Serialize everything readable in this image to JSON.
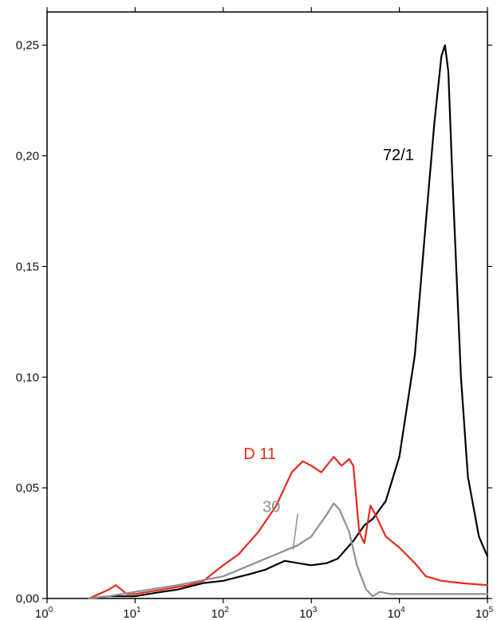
{
  "chart_data": {
    "type": "line",
    "title": "",
    "xlabel": "",
    "ylabel": "",
    "x_scale": "log",
    "xlim": [
      1,
      100000
    ],
    "ylim": [
      0,
      0.265
    ],
    "grid": false,
    "x_ticks": [
      {
        "base": "10",
        "exp": "0",
        "value": 1
      },
      {
        "base": "10",
        "exp": "1",
        "value": 10
      },
      {
        "base": "10",
        "exp": "2",
        "value": 100
      },
      {
        "base": "10",
        "exp": "3",
        "value": 1000
      },
      {
        "base": "10",
        "exp": "4",
        "value": 10000
      },
      {
        "base": "10",
        "exp": "5",
        "value": 100000
      }
    ],
    "y_ticks": [
      {
        "label": "0,00",
        "value": 0
      },
      {
        "label": "0,05",
        "value": 0.05
      },
      {
        "label": "0,10",
        "value": 0.1
      },
      {
        "label": "0,15",
        "value": 0.15
      },
      {
        "label": "0,20",
        "value": 0.2
      },
      {
        "label": "0,25",
        "value": 0.25
      }
    ],
    "series": [
      {
        "name": "72/1",
        "color": "#000000",
        "label_pos": [
          6500,
          0.198
        ],
        "points": [
          [
            3,
            0.0
          ],
          [
            5,
            0.001
          ],
          [
            10,
            0.001
          ],
          [
            20,
            0.003
          ],
          [
            30,
            0.004
          ],
          [
            60,
            0.007
          ],
          [
            100,
            0.008
          ],
          [
            200,
            0.011
          ],
          [
            300,
            0.013
          ],
          [
            500,
            0.017
          ],
          [
            700,
            0.016
          ],
          [
            1000,
            0.015
          ],
          [
            1500,
            0.016
          ],
          [
            2000,
            0.018
          ],
          [
            3000,
            0.026
          ],
          [
            4000,
            0.033
          ],
          [
            5000,
            0.036
          ],
          [
            7000,
            0.044
          ],
          [
            10000,
            0.064
          ],
          [
            15000,
            0.11
          ],
          [
            20000,
            0.17
          ],
          [
            25000,
            0.215
          ],
          [
            30000,
            0.245
          ],
          [
            33000,
            0.25
          ],
          [
            36000,
            0.238
          ],
          [
            40000,
            0.19
          ],
          [
            50000,
            0.1
          ],
          [
            60000,
            0.055
          ],
          [
            80000,
            0.028
          ],
          [
            100000,
            0.019
          ]
        ]
      },
      {
        "name": "D 11",
        "color": "#e8291c",
        "label_pos": [
          170,
          0.063
        ],
        "points": [
          [
            3,
            0.0
          ],
          [
            5,
            0.004
          ],
          [
            6,
            0.006
          ],
          [
            7,
            0.004
          ],
          [
            8,
            0.002
          ],
          [
            10,
            0.002
          ],
          [
            20,
            0.004
          ],
          [
            40,
            0.006
          ],
          [
            60,
            0.008
          ],
          [
            80,
            0.012
          ],
          [
            100,
            0.015
          ],
          [
            150,
            0.02
          ],
          [
            250,
            0.03
          ],
          [
            400,
            0.042
          ],
          [
            600,
            0.057
          ],
          [
            800,
            0.062
          ],
          [
            1000,
            0.06
          ],
          [
            1300,
            0.057
          ],
          [
            1800,
            0.064
          ],
          [
            2200,
            0.06
          ],
          [
            2700,
            0.063
          ],
          [
            3000,
            0.06
          ],
          [
            3500,
            0.03
          ],
          [
            4000,
            0.025
          ],
          [
            4700,
            0.042
          ],
          [
            5500,
            0.037
          ],
          [
            7000,
            0.028
          ],
          [
            10000,
            0.023
          ],
          [
            15000,
            0.016
          ],
          [
            20000,
            0.01
          ],
          [
            30000,
            0.008
          ],
          [
            50000,
            0.007
          ],
          [
            100000,
            0.006
          ]
        ]
      },
      {
        "name": "30",
        "color": "#8f8f8f",
        "label_pos": [
          280,
          0.039
        ],
        "points": [
          [
            3,
            0.0
          ],
          [
            5,
            0.001
          ],
          [
            10,
            0.003
          ],
          [
            30,
            0.006
          ],
          [
            100,
            0.01
          ],
          [
            200,
            0.015
          ],
          [
            400,
            0.02
          ],
          [
            700,
            0.024
          ],
          [
            1000,
            0.028
          ],
          [
            1500,
            0.038
          ],
          [
            1800,
            0.043
          ],
          [
            2100,
            0.04
          ],
          [
            2700,
            0.03
          ],
          [
            3300,
            0.015
          ],
          [
            4200,
            0.004
          ],
          [
            5000,
            0.001
          ],
          [
            6000,
            0.003
          ],
          [
            8000,
            0.002
          ],
          [
            10000,
            0.002
          ],
          [
            100000,
            0.002
          ]
        ]
      }
    ]
  }
}
